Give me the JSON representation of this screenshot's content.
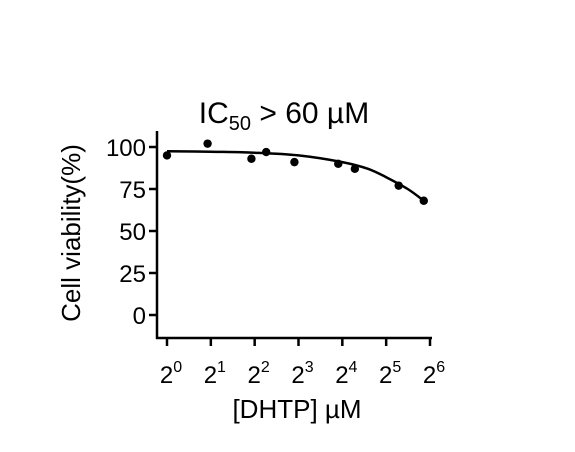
{
  "chart_data": {
    "type": "scatter",
    "title": {
      "prefix": "IC",
      "subscript": "50",
      "suffix": " > 60 µM"
    },
    "xlabel": "[DHTP] µM",
    "ylabel": "Cell viability(%)",
    "x_scale": "log2",
    "xlim": [
      1,
      64
    ],
    "ylim": [
      0,
      100
    ],
    "x_ticks": [
      {
        "value": 1,
        "base": "2",
        "exponent": "0"
      },
      {
        "value": 2,
        "base": "2",
        "exponent": "1"
      },
      {
        "value": 4,
        "base": "2",
        "exponent": "2"
      },
      {
        "value": 8,
        "base": "2",
        "exponent": "3"
      },
      {
        "value": 16,
        "base": "2",
        "exponent": "4"
      },
      {
        "value": 32,
        "base": "2",
        "exponent": "5"
      },
      {
        "value": 64,
        "base": "2",
        "exponent": "6"
      }
    ],
    "y_ticks": [
      0,
      25,
      50,
      75,
      100
    ],
    "y_tick_labels": [
      "0",
      "25",
      "50",
      "75",
      "100"
    ],
    "points": [
      {
        "x": 1.0,
        "y": 95
      },
      {
        "x": 1.9,
        "y": 102
      },
      {
        "x": 3.8,
        "y": 93
      },
      {
        "x": 4.8,
        "y": 97
      },
      {
        "x": 7.5,
        "y": 91
      },
      {
        "x": 15.0,
        "y": 90
      },
      {
        "x": 19.5,
        "y": 87
      },
      {
        "x": 39.0,
        "y": 77
      },
      {
        "x": 58.0,
        "y": 68
      }
    ],
    "fit_curve": [
      {
        "x": 1,
        "y": 97.5
      },
      {
        "x": 2,
        "y": 97.2
      },
      {
        "x": 4,
        "y": 96.6
      },
      {
        "x": 8,
        "y": 95.0
      },
      {
        "x": 16,
        "y": 91.0
      },
      {
        "x": 24,
        "y": 87.0
      },
      {
        "x": 32,
        "y": 82.0
      },
      {
        "x": 45,
        "y": 75.0
      },
      {
        "x": 58,
        "y": 68.0
      }
    ],
    "grid": false,
    "legend": "none",
    "colors": {
      "points": "#000000",
      "curve": "#000000",
      "axes": "#000000"
    }
  }
}
